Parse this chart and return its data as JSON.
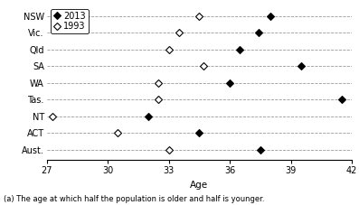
{
  "categories": [
    "NSW",
    "Vic.",
    "Qld",
    "SA",
    "WA",
    "Tas.",
    "NT",
    "ACT",
    "Aust."
  ],
  "data_2013": [
    38.0,
    37.4,
    36.5,
    39.5,
    36.0,
    41.5,
    32.0,
    34.5,
    37.5
  ],
  "data_1993": [
    34.5,
    33.5,
    33.0,
    34.7,
    32.5,
    32.5,
    27.3,
    30.5,
    33.0
  ],
  "xlim": [
    27,
    42
  ],
  "xticks": [
    27,
    30,
    33,
    36,
    39,
    42
  ],
  "xlabel": "Age",
  "footnote": "(a) The age at which half the population is older and half is younger.",
  "legend_2013": "2013",
  "legend_1993": "1993",
  "marker_filled": "D",
  "marker_open": "D",
  "color_filled": "black",
  "color_open": "white",
  "marker_size": 4,
  "grid_color": "#999999",
  "bg_color": "white",
  "font_size": 7,
  "xlabel_size": 7.5
}
